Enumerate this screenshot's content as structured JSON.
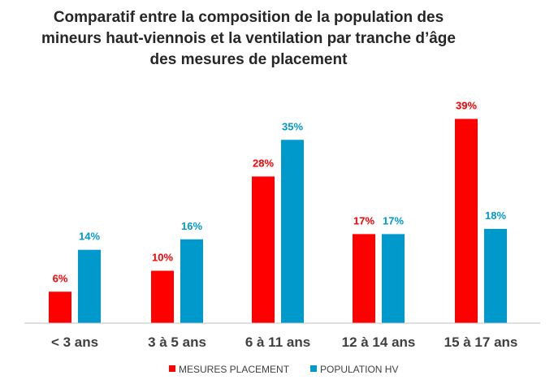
{
  "chart_data": {
    "type": "bar",
    "title_lines": [
      "Comparatif entre la composition de la population des",
      "mineurs haut-viennois et la ventilation par tranche d’âge",
      "des mesures de placement"
    ],
    "categories": [
      "< 3 ans",
      "3 à 5 ans",
      "6 à 11 ans",
      "12 à 14 ans",
      "15 à 17 ans"
    ],
    "series": [
      {
        "name": "MESURES PLACEMENT",
        "color": "#ff0000",
        "values": [
          6,
          10,
          28,
          17,
          39
        ],
        "labels": [
          "6%",
          "10%",
          "28%",
          "17%",
          "39%"
        ]
      },
      {
        "name": "POPULATION HV",
        "color": "#0099cc",
        "values": [
          14,
          16,
          35,
          17,
          18
        ],
        "labels": [
          "14%",
          "16%",
          "35%",
          "17%",
          "18%"
        ]
      }
    ],
    "ylim": [
      0,
      45
    ],
    "grid": false,
    "legend_position": "bottom"
  }
}
